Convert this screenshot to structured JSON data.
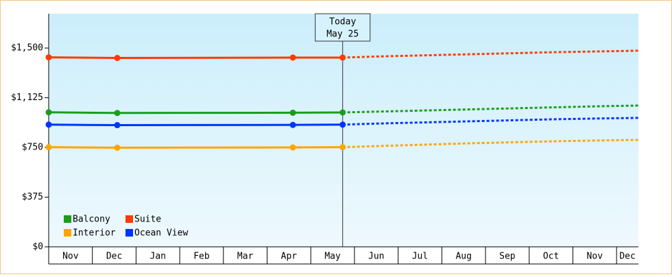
{
  "chart_data": {
    "type": "line",
    "categories": [
      "Nov",
      "Dec",
      "Jan",
      "Feb",
      "Mar",
      "Apr",
      "May",
      "Jun",
      "Jul",
      "Aug",
      "Sep",
      "Oct",
      "Nov",
      "Dec"
    ],
    "xlim": [
      0,
      13.5
    ],
    "x": [
      0,
      1.57,
      5.59,
      6.73
    ],
    "forecast_x": [
      6.73,
      7.5,
      8.5,
      9.5,
      10.5,
      11.5,
      12.5,
      13.5
    ],
    "ylim": [
      0,
      1759
    ],
    "yticks": [
      {
        "value": 0,
        "label": "$0"
      },
      {
        "value": 375,
        "label": "$375"
      },
      {
        "value": 750,
        "label": "$750"
      },
      {
        "value": 1125,
        "label": "$1,125"
      },
      {
        "value": 1500,
        "label": "$1,500"
      }
    ],
    "annotation": {
      "lines": [
        "Today",
        "May 25"
      ],
      "x": 6.73
    },
    "series": [
      {
        "name": "Balcony",
        "color": "#1a9e1a",
        "values": [
          1015,
          1010,
          1012,
          1014
        ],
        "forecast": {
          "values": [
            1014,
            1020,
            1028,
            1036,
            1044,
            1052,
            1060,
            1066
          ]
        }
      },
      {
        "name": "Suite",
        "color": "#ff3a00",
        "values": [
          1430,
          1425,
          1428,
          1428
        ],
        "forecast": {
          "values": [
            1428,
            1436,
            1444,
            1452,
            1460,
            1468,
            1474,
            1480
          ]
        }
      },
      {
        "name": "Interior",
        "color": "#ffa500",
        "values": [
          752,
          748,
          750,
          752
        ],
        "forecast": {
          "values": [
            752,
            760,
            770,
            780,
            788,
            796,
            802,
            807
          ]
        }
      },
      {
        "name": "Ocean View",
        "color": "#0033ff",
        "values": [
          922,
          918,
          920,
          922
        ],
        "forecast": {
          "values": [
            922,
            930,
            938,
            946,
            954,
            962,
            968,
            973
          ]
        }
      }
    ]
  }
}
